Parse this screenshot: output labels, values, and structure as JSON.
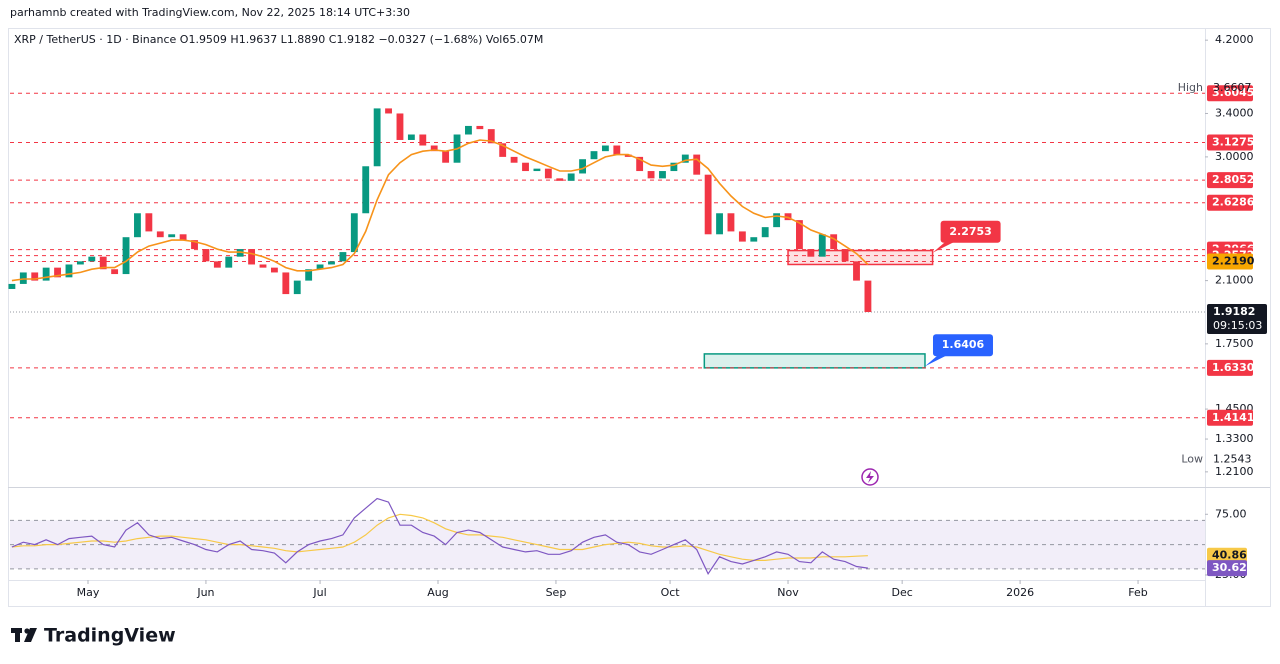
{
  "header": "parhamnb created with TradingView.com, Nov 22, 2025 18:14 UTC+3:30",
  "brand": "TradingView",
  "chart_data": {
    "type": "candlestick",
    "subtitle": "XRP / TetherUS · 1D · Binance   O1.9509 H1.9637 L1.8890 C1.9182 −0.0327 (−1.68%) Vol65.07M",
    "log": true,
    "grid": false,
    "up_color": "#089981",
    "down_color": "#f23645",
    "xlim": [
      99.5,
      413.6
    ],
    "xticks": [
      {
        "value": 120,
        "label": "May"
      },
      {
        "value": 151,
        "label": "Jun"
      },
      {
        "value": 181,
        "label": "Jul"
      },
      {
        "value": 212,
        "label": "Aug"
      },
      {
        "value": 243,
        "label": "Sep"
      },
      {
        "value": 273,
        "label": "Oct"
      },
      {
        "value": 304,
        "label": "Nov"
      },
      {
        "value": 334,
        "label": "Dec"
      },
      {
        "value": 365,
        "label": "2026"
      },
      {
        "value": 396,
        "label": "Feb"
      }
    ],
    "ylim": [
      1.165,
      4.35
    ],
    "yticks": [
      {
        "value": 4.2,
        "label": "4.2000"
      },
      {
        "value": 3.4,
        "label": "3.4000"
      },
      {
        "value": 3,
        "label": "3.0000"
      },
      {
        "value": 2.1,
        "label": "2.1000"
      },
      {
        "value": 1.75,
        "label": "1.7500"
      },
      {
        "value": 1.45,
        "label": "1.4500"
      },
      {
        "value": 1.33,
        "label": "1.3300"
      },
      {
        "value": 1.21,
        "label": "1.2100"
      }
    ],
    "x": [
      100,
      103,
      106,
      109,
      112,
      115,
      118,
      121,
      124,
      127,
      130,
      133,
      136,
      139,
      142,
      145,
      148,
      151,
      154,
      157,
      160,
      163,
      166,
      169,
      172,
      175,
      178,
      181,
      184,
      187,
      190,
      193,
      196,
      199,
      202,
      205,
      208,
      211,
      214,
      217,
      220,
      223,
      226,
      229,
      232,
      235,
      238,
      241,
      244,
      247,
      250,
      253,
      256,
      259,
      262,
      265,
      268,
      271,
      274,
      277,
      280,
      283,
      286,
      289,
      292,
      295,
      298,
      301,
      304,
      307,
      310,
      313,
      316,
      319,
      322,
      325
    ],
    "open": [
      2.05,
      2.08,
      2.15,
      2.1,
      2.18,
      2.12,
      2.2,
      2.22,
      2.25,
      2.17,
      2.14,
      2.38,
      2.55,
      2.42,
      2.38,
      2.4,
      2.36,
      2.3,
      2.22,
      2.18,
      2.25,
      2.3,
      2.2,
      2.18,
      2.15,
      2.02,
      2.1,
      2.17,
      2.2,
      2.22,
      2.28,
      2.55,
      2.92,
      3.45,
      3.4,
      3.15,
      3.2,
      3.1,
      3.05,
      2.95,
      3.2,
      3.28,
      3.25,
      3.12,
      3.0,
      2.95,
      2.88,
      2.9,
      2.82,
      2.8,
      2.86,
      2.98,
      3.05,
      3.1,
      3.02,
      3.0,
      2.88,
      2.82,
      2.88,
      2.95,
      3.02,
      2.85,
      2.4,
      2.55,
      2.42,
      2.35,
      2.38,
      2.45,
      2.55,
      2.5,
      2.3,
      2.25,
      2.4,
      2.3,
      2.22,
      2.1
    ],
    "high": 3.6607,
    "low": 1.2543,
    "close": [
      2.08,
      2.15,
      2.1,
      2.18,
      2.12,
      2.2,
      2.22,
      2.25,
      2.17,
      2.14,
      2.38,
      2.55,
      2.42,
      2.38,
      2.4,
      2.36,
      2.3,
      2.22,
      2.18,
      2.25,
      2.3,
      2.2,
      2.18,
      2.15,
      2.02,
      2.1,
      2.17,
      2.2,
      2.22,
      2.28,
      2.55,
      2.92,
      3.45,
      3.4,
      3.15,
      3.2,
      3.1,
      3.05,
      2.95,
      3.2,
      3.28,
      3.25,
      3.12,
      3.0,
      2.95,
      2.88,
      2.9,
      2.82,
      2.8,
      2.86,
      2.98,
      3.05,
      3.1,
      3.02,
      3.0,
      2.88,
      2.82,
      2.88,
      2.95,
      3.02,
      2.85,
      2.4,
      2.55,
      2.42,
      2.35,
      2.38,
      2.45,
      2.55,
      2.5,
      2.3,
      2.25,
      2.4,
      2.3,
      2.22,
      2.1,
      1.9182
    ],
    "ema": {
      "color": "#f7931a",
      "values": [
        2.1,
        2.11,
        2.11,
        2.12,
        2.13,
        2.14,
        2.15,
        2.17,
        2.18,
        2.18,
        2.22,
        2.28,
        2.32,
        2.34,
        2.36,
        2.36,
        2.35,
        2.33,
        2.3,
        2.28,
        2.28,
        2.27,
        2.25,
        2.22,
        2.18,
        2.16,
        2.16,
        2.17,
        2.18,
        2.2,
        2.27,
        2.42,
        2.65,
        2.85,
        2.95,
        3.02,
        3.05,
        3.06,
        3.05,
        3.07,
        3.12,
        3.15,
        3.14,
        3.1,
        3.05,
        3.0,
        2.96,
        2.92,
        2.88,
        2.88,
        2.9,
        2.95,
        3.0,
        3.02,
        3.02,
        2.98,
        2.93,
        2.92,
        2.93,
        2.97,
        2.98,
        2.9,
        2.78,
        2.68,
        2.6,
        2.55,
        2.52,
        2.53,
        2.52,
        2.48,
        2.43,
        2.4,
        2.37,
        2.32,
        2.27,
        2.2
      ]
    },
    "levels": [
      3.6045,
      3.1275,
      2.8052,
      2.6286,
      2.2966,
      2.2572,
      {
        "value": 2.219,
        "label": "2.2190"
      },
      {
        "value": 1.633,
        "label": "1.6330"
      },
      1.4141
    ],
    "level_color": "#f23645",
    "highlight_level_color": "#f7a600",
    "high_label": "High",
    "low_label": "Low",
    "last": 1.9182,
    "countdown": "09:15:03",
    "zones": [
      {
        "top": 2.29,
        "bottom": 2.2,
        "x": [
          304,
          342
        ],
        "color": "#f23645",
        "callout": 2.2753,
        "callout_color": "#f23645"
      },
      {
        "top": 1.7,
        "bottom": 1.633,
        "x": [
          282,
          340
        ],
        "color": "#089981",
        "callout": 1.6406,
        "callout_color": "#2962ff"
      }
    ],
    "rsi": {
      "ylim": [
        22.5,
        95
      ],
      "yticks": [
        {
          "value": 75,
          "label": "75.00"
        },
        {
          "value": 25,
          "label": "25.00"
        }
      ],
      "levels": [
        70,
        50,
        30
      ],
      "series": [
        {
          "color": "#f7c948",
          "values": [
            48,
            49,
            49,
            50,
            50,
            51,
            52,
            53,
            53,
            52,
            53,
            55,
            56,
            57,
            57,
            56,
            55,
            54,
            52,
            50,
            50,
            49,
            48,
            47,
            45,
            44,
            45,
            46,
            47,
            48,
            52,
            58,
            66,
            72,
            75,
            74,
            72,
            68,
            63,
            60,
            58,
            58,
            57,
            56,
            54,
            52,
            50,
            48,
            46,
            46,
            46,
            48,
            50,
            51,
            52,
            51,
            49,
            48,
            48,
            49,
            48,
            45,
            42,
            40,
            38,
            37,
            37,
            38,
            39,
            39,
            39,
            40,
            40,
            40,
            40.5,
            40.86
          ]
        },
        {
          "color": "#7e57c2",
          "values": [
            48,
            52,
            50,
            54,
            50,
            55,
            56,
            57,
            50,
            48,
            62,
            68,
            58,
            55,
            56,
            53,
            50,
            46,
            44,
            50,
            53,
            46,
            45,
            43,
            35,
            44,
            50,
            53,
            55,
            58,
            72,
            80,
            88,
            85,
            66,
            66,
            60,
            57,
            50,
            60,
            62,
            60,
            54,
            48,
            46,
            44,
            45,
            42,
            42,
            45,
            52,
            56,
            58,
            52,
            50,
            44,
            42,
            46,
            50,
            54,
            46,
            26,
            40,
            36,
            34,
            37,
            40,
            44,
            42,
            36,
            35,
            44,
            38,
            36,
            32,
            30.62
          ]
        }
      ]
    }
  }
}
